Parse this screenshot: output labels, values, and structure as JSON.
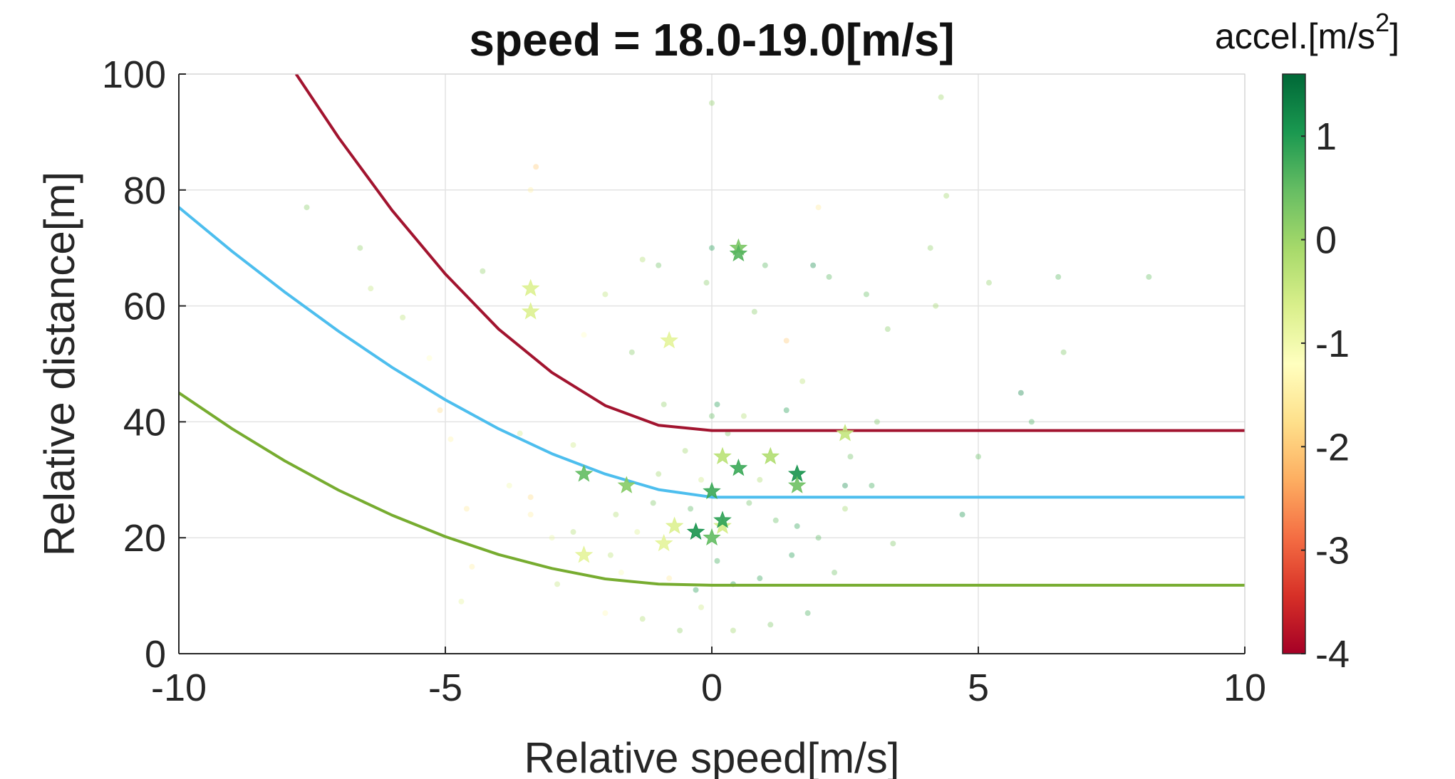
{
  "chart_data": {
    "type": "scatter",
    "title": "speed = 18.0-19.0[m/s]",
    "xlabel": "Relative speed[m/s]",
    "ylabel": "Relative distance[m]",
    "xlim": [
      -10,
      10
    ],
    "ylim": [
      0,
      100
    ],
    "xticks": [
      "-10",
      "-5",
      "0",
      "5",
      "10"
    ],
    "yticks": [
      "0",
      "20",
      "40",
      "60",
      "80",
      "100"
    ],
    "grid": true,
    "colorbar": {
      "label_main": "accel.[m/s",
      "label_sup": "2",
      "label_end": "]",
      "range": [
        -4,
        1.6
      ],
      "ticks": [
        "-4",
        "-3",
        "-2",
        "-1",
        "0",
        "1"
      ],
      "tick_values": [
        -4,
        -3,
        -2,
        -1,
        0,
        1
      ],
      "colormap": [
        "#a50026",
        "#d73027",
        "#f46d43",
        "#fdae61",
        "#fee08b",
        "#ffffbf",
        "#d9ef8b",
        "#a6d96a",
        "#66bd63",
        "#1a9850",
        "#006837"
      ]
    },
    "curves": [
      {
        "color": "#a2142f",
        "points": [
          [
            -7.8,
            100
          ],
          [
            -7,
            89
          ],
          [
            -6,
            76.5
          ],
          [
            -5,
            65.5
          ],
          [
            -4,
            56
          ],
          [
            -3,
            48.5
          ],
          [
            -2,
            42.8
          ],
          [
            -1,
            39.4
          ],
          [
            0,
            38.5
          ],
          [
            10,
            38.5
          ]
        ]
      },
      {
        "color": "#4dbeee",
        "points": [
          [
            -10,
            77
          ],
          [
            -9,
            69.4
          ],
          [
            -8,
            62.3
          ],
          [
            -7,
            55.6
          ],
          [
            -6,
            49.4
          ],
          [
            -5,
            43.8
          ],
          [
            -4,
            38.8
          ],
          [
            -3,
            34.5
          ],
          [
            -2,
            31
          ],
          [
            -1,
            28.3
          ],
          [
            0,
            27
          ],
          [
            10,
            27
          ]
        ]
      },
      {
        "color": "#77ac30",
        "points": [
          [
            -10,
            45
          ],
          [
            -9,
            38.8
          ],
          [
            -8,
            33.2
          ],
          [
            -7,
            28.2
          ],
          [
            -6,
            23.9
          ],
          [
            -5,
            20.2
          ],
          [
            -4,
            17.1
          ],
          [
            -3,
            14.7
          ],
          [
            -2,
            12.9
          ],
          [
            -1,
            12
          ],
          [
            0,
            11.8
          ],
          [
            10,
            11.8
          ]
        ]
      }
    ],
    "stars": [
      {
        "x": -3.4,
        "y": 63,
        "a": -0.7
      },
      {
        "x": -3.4,
        "y": 59,
        "a": -0.7
      },
      {
        "x": -0.8,
        "y": 54,
        "a": -0.8
      },
      {
        "x": 0.5,
        "y": 70,
        "a": 0.3
      },
      {
        "x": 0.5,
        "y": 69,
        "a": 0.6
      },
      {
        "x": 2.5,
        "y": 38,
        "a": -0.4
      },
      {
        "x": -2.4,
        "y": 31,
        "a": 0.5
      },
      {
        "x": -1.6,
        "y": 29,
        "a": 0.2
      },
      {
        "x": -0.7,
        "y": 22,
        "a": -0.7
      },
      {
        "x": -0.9,
        "y": 19,
        "a": -0.8
      },
      {
        "x": -2.4,
        "y": 17,
        "a": -0.8
      },
      {
        "x": -0.3,
        "y": 21,
        "a": 1.1
      },
      {
        "x": 0.0,
        "y": 20,
        "a": 0.5
      },
      {
        "x": 0.0,
        "y": 28,
        "a": 0.8
      },
      {
        "x": 0.2,
        "y": 22,
        "a": -0.6
      },
      {
        "x": 0.2,
        "y": 34,
        "a": -0.3
      },
      {
        "x": 0.5,
        "y": 32,
        "a": 0.8
      },
      {
        "x": 1.1,
        "y": 34,
        "a": -0.2
      },
      {
        "x": 1.6,
        "y": 31,
        "a": 1.1
      },
      {
        "x": 1.6,
        "y": 29,
        "a": 0.4
      },
      {
        "x": 0.2,
        "y": 23,
        "a": 0.9
      }
    ],
    "dots": [
      {
        "x": -3.3,
        "y": 84,
        "a": -2.0
      },
      {
        "x": -3.4,
        "y": 80,
        "a": -1.5
      },
      {
        "x": -4.3,
        "y": 66,
        "a": 0.1
      },
      {
        "x": -6.4,
        "y": 63,
        "a": -0.4
      },
      {
        "x": -5.3,
        "y": 51,
        "a": -1.2
      },
      {
        "x": -5.1,
        "y": 42,
        "a": -1.8
      },
      {
        "x": -4.9,
        "y": 37,
        "a": -1.4
      },
      {
        "x": -4.6,
        "y": 25,
        "a": -1.6
      },
      {
        "x": -4.5,
        "y": 15,
        "a": -1.5
      },
      {
        "x": -4.7,
        "y": 9,
        "a": -0.8
      },
      {
        "x": -3.6,
        "y": 38,
        "a": -0.6
      },
      {
        "x": -3.4,
        "y": 27,
        "a": -1.8
      },
      {
        "x": -3.4,
        "y": 24,
        "a": -1.5
      },
      {
        "x": -3.0,
        "y": 20,
        "a": -0.9
      },
      {
        "x": -2.6,
        "y": 36,
        "a": -0.5
      },
      {
        "x": -2.4,
        "y": 55,
        "a": -1.2
      },
      {
        "x": -2.0,
        "y": 62,
        "a": -0.3
      },
      {
        "x": -1.8,
        "y": 24,
        "a": -0.2
      },
      {
        "x": -1.7,
        "y": 14,
        "a": -1.1
      },
      {
        "x": -2.0,
        "y": 7,
        "a": -1.3
      },
      {
        "x": -1.5,
        "y": 52,
        "a": 0.2
      },
      {
        "x": -1.3,
        "y": 68,
        "a": -0.2
      },
      {
        "x": -1.0,
        "y": 67,
        "a": 0.4
      },
      {
        "x": -0.9,
        "y": 43,
        "a": 0.1
      },
      {
        "x": -0.5,
        "y": 35,
        "a": 0.0
      },
      {
        "x": -0.2,
        "y": 30,
        "a": -0.5
      },
      {
        "x": 0.0,
        "y": 95,
        "a": 0.1
      },
      {
        "x": 0.0,
        "y": 70,
        "a": 1.0
      },
      {
        "x": -0.1,
        "y": 64,
        "a": 0.2
      },
      {
        "x": 0.1,
        "y": 43,
        "a": 1.0
      },
      {
        "x": 0.0,
        "y": 41,
        "a": 0.5
      },
      {
        "x": 0.3,
        "y": 38,
        "a": 0.3
      },
      {
        "x": 0.6,
        "y": 41,
        "a": -0.2
      },
      {
        "x": 0.8,
        "y": 59,
        "a": 0.2
      },
      {
        "x": 1.0,
        "y": 67,
        "a": 0.6
      },
      {
        "x": 1.4,
        "y": 54,
        "a": -2.0
      },
      {
        "x": 1.4,
        "y": 42,
        "a": 1.0
      },
      {
        "x": 1.7,
        "y": 47,
        "a": -0.3
      },
      {
        "x": 1.9,
        "y": 67,
        "a": 1.2
      },
      {
        "x": 2.2,
        "y": 65,
        "a": 0.6
      },
      {
        "x": 2.0,
        "y": 77,
        "a": -1.6
      },
      {
        "x": 2.9,
        "y": 62,
        "a": 0.5
      },
      {
        "x": 3.3,
        "y": 56,
        "a": 0.2
      },
      {
        "x": 3.1,
        "y": 40,
        "a": 0.3
      },
      {
        "x": 3.0,
        "y": 29,
        "a": 0.8
      },
      {
        "x": 2.5,
        "y": 25,
        "a": 0.0
      },
      {
        "x": 2.5,
        "y": 29,
        "a": 1.2
      },
      {
        "x": 3.4,
        "y": 19,
        "a": 0.3
      },
      {
        "x": 4.1,
        "y": 70,
        "a": 0.1
      },
      {
        "x": 4.2,
        "y": 60,
        "a": 0.0
      },
      {
        "x": 4.7,
        "y": 24,
        "a": 1.1
      },
      {
        "x": 5.0,
        "y": 34,
        "a": 0.5
      },
      {
        "x": 4.4,
        "y": 79,
        "a": 0.0
      },
      {
        "x": 4.3,
        "y": 96,
        "a": 0.0
      },
      {
        "x": 5.2,
        "y": 64,
        "a": 0.1
      },
      {
        "x": 5.8,
        "y": 45,
        "a": 1.3
      },
      {
        "x": 6.0,
        "y": 40,
        "a": 0.7
      },
      {
        "x": 6.6,
        "y": 52,
        "a": 0.3
      },
      {
        "x": 6.5,
        "y": 65,
        "a": 0.6
      },
      {
        "x": 8.2,
        "y": 65,
        "a": 0.5
      },
      {
        "x": -7.6,
        "y": 77,
        "a": 0.2
      },
      {
        "x": -6.6,
        "y": 70,
        "a": 0.1
      },
      {
        "x": -5.8,
        "y": 58,
        "a": -0.3
      },
      {
        "x": -3.8,
        "y": 29,
        "a": -1.0
      },
      {
        "x": -2.9,
        "y": 12,
        "a": -0.4
      },
      {
        "x": -1.3,
        "y": 6,
        "a": -0.2
      },
      {
        "x": -0.6,
        "y": 4,
        "a": 0.1
      },
      {
        "x": 0.4,
        "y": 4,
        "a": 0.0
      },
      {
        "x": 1.1,
        "y": 5,
        "a": 0.3
      },
      {
        "x": 1.8,
        "y": 7,
        "a": 0.7
      },
      {
        "x": 1.6,
        "y": 22,
        "a": 0.9
      },
      {
        "x": 1.5,
        "y": 17,
        "a": 1.0
      },
      {
        "x": 0.9,
        "y": 13,
        "a": 0.9
      },
      {
        "x": 0.4,
        "y": 12,
        "a": 1.1
      },
      {
        "x": -0.3,
        "y": 11,
        "a": 1.0
      },
      {
        "x": -0.8,
        "y": 13,
        "a": -1.6
      },
      {
        "x": -1.4,
        "y": 21,
        "a": -0.7
      },
      {
        "x": -1.1,
        "y": 26,
        "a": 0.3
      },
      {
        "x": -0.4,
        "y": 25,
        "a": 0.6
      },
      {
        "x": 0.7,
        "y": 26,
        "a": 0.4
      },
      {
        "x": 1.2,
        "y": 23,
        "a": 0.5
      },
      {
        "x": 2.0,
        "y": 20,
        "a": 0.6
      },
      {
        "x": 2.3,
        "y": 14,
        "a": 0.4
      },
      {
        "x": -1.9,
        "y": 17,
        "a": -0.3
      },
      {
        "x": -2.6,
        "y": 21,
        "a": -0.2
      },
      {
        "x": 0.1,
        "y": 16,
        "a": 0.8
      },
      {
        "x": -0.2,
        "y": 8,
        "a": -0.5
      },
      {
        "x": 0.9,
        "y": 30,
        "a": -0.1
      },
      {
        "x": -1.0,
        "y": 31,
        "a": 0.0
      },
      {
        "x": 2.6,
        "y": 34,
        "a": 0.4
      }
    ]
  }
}
